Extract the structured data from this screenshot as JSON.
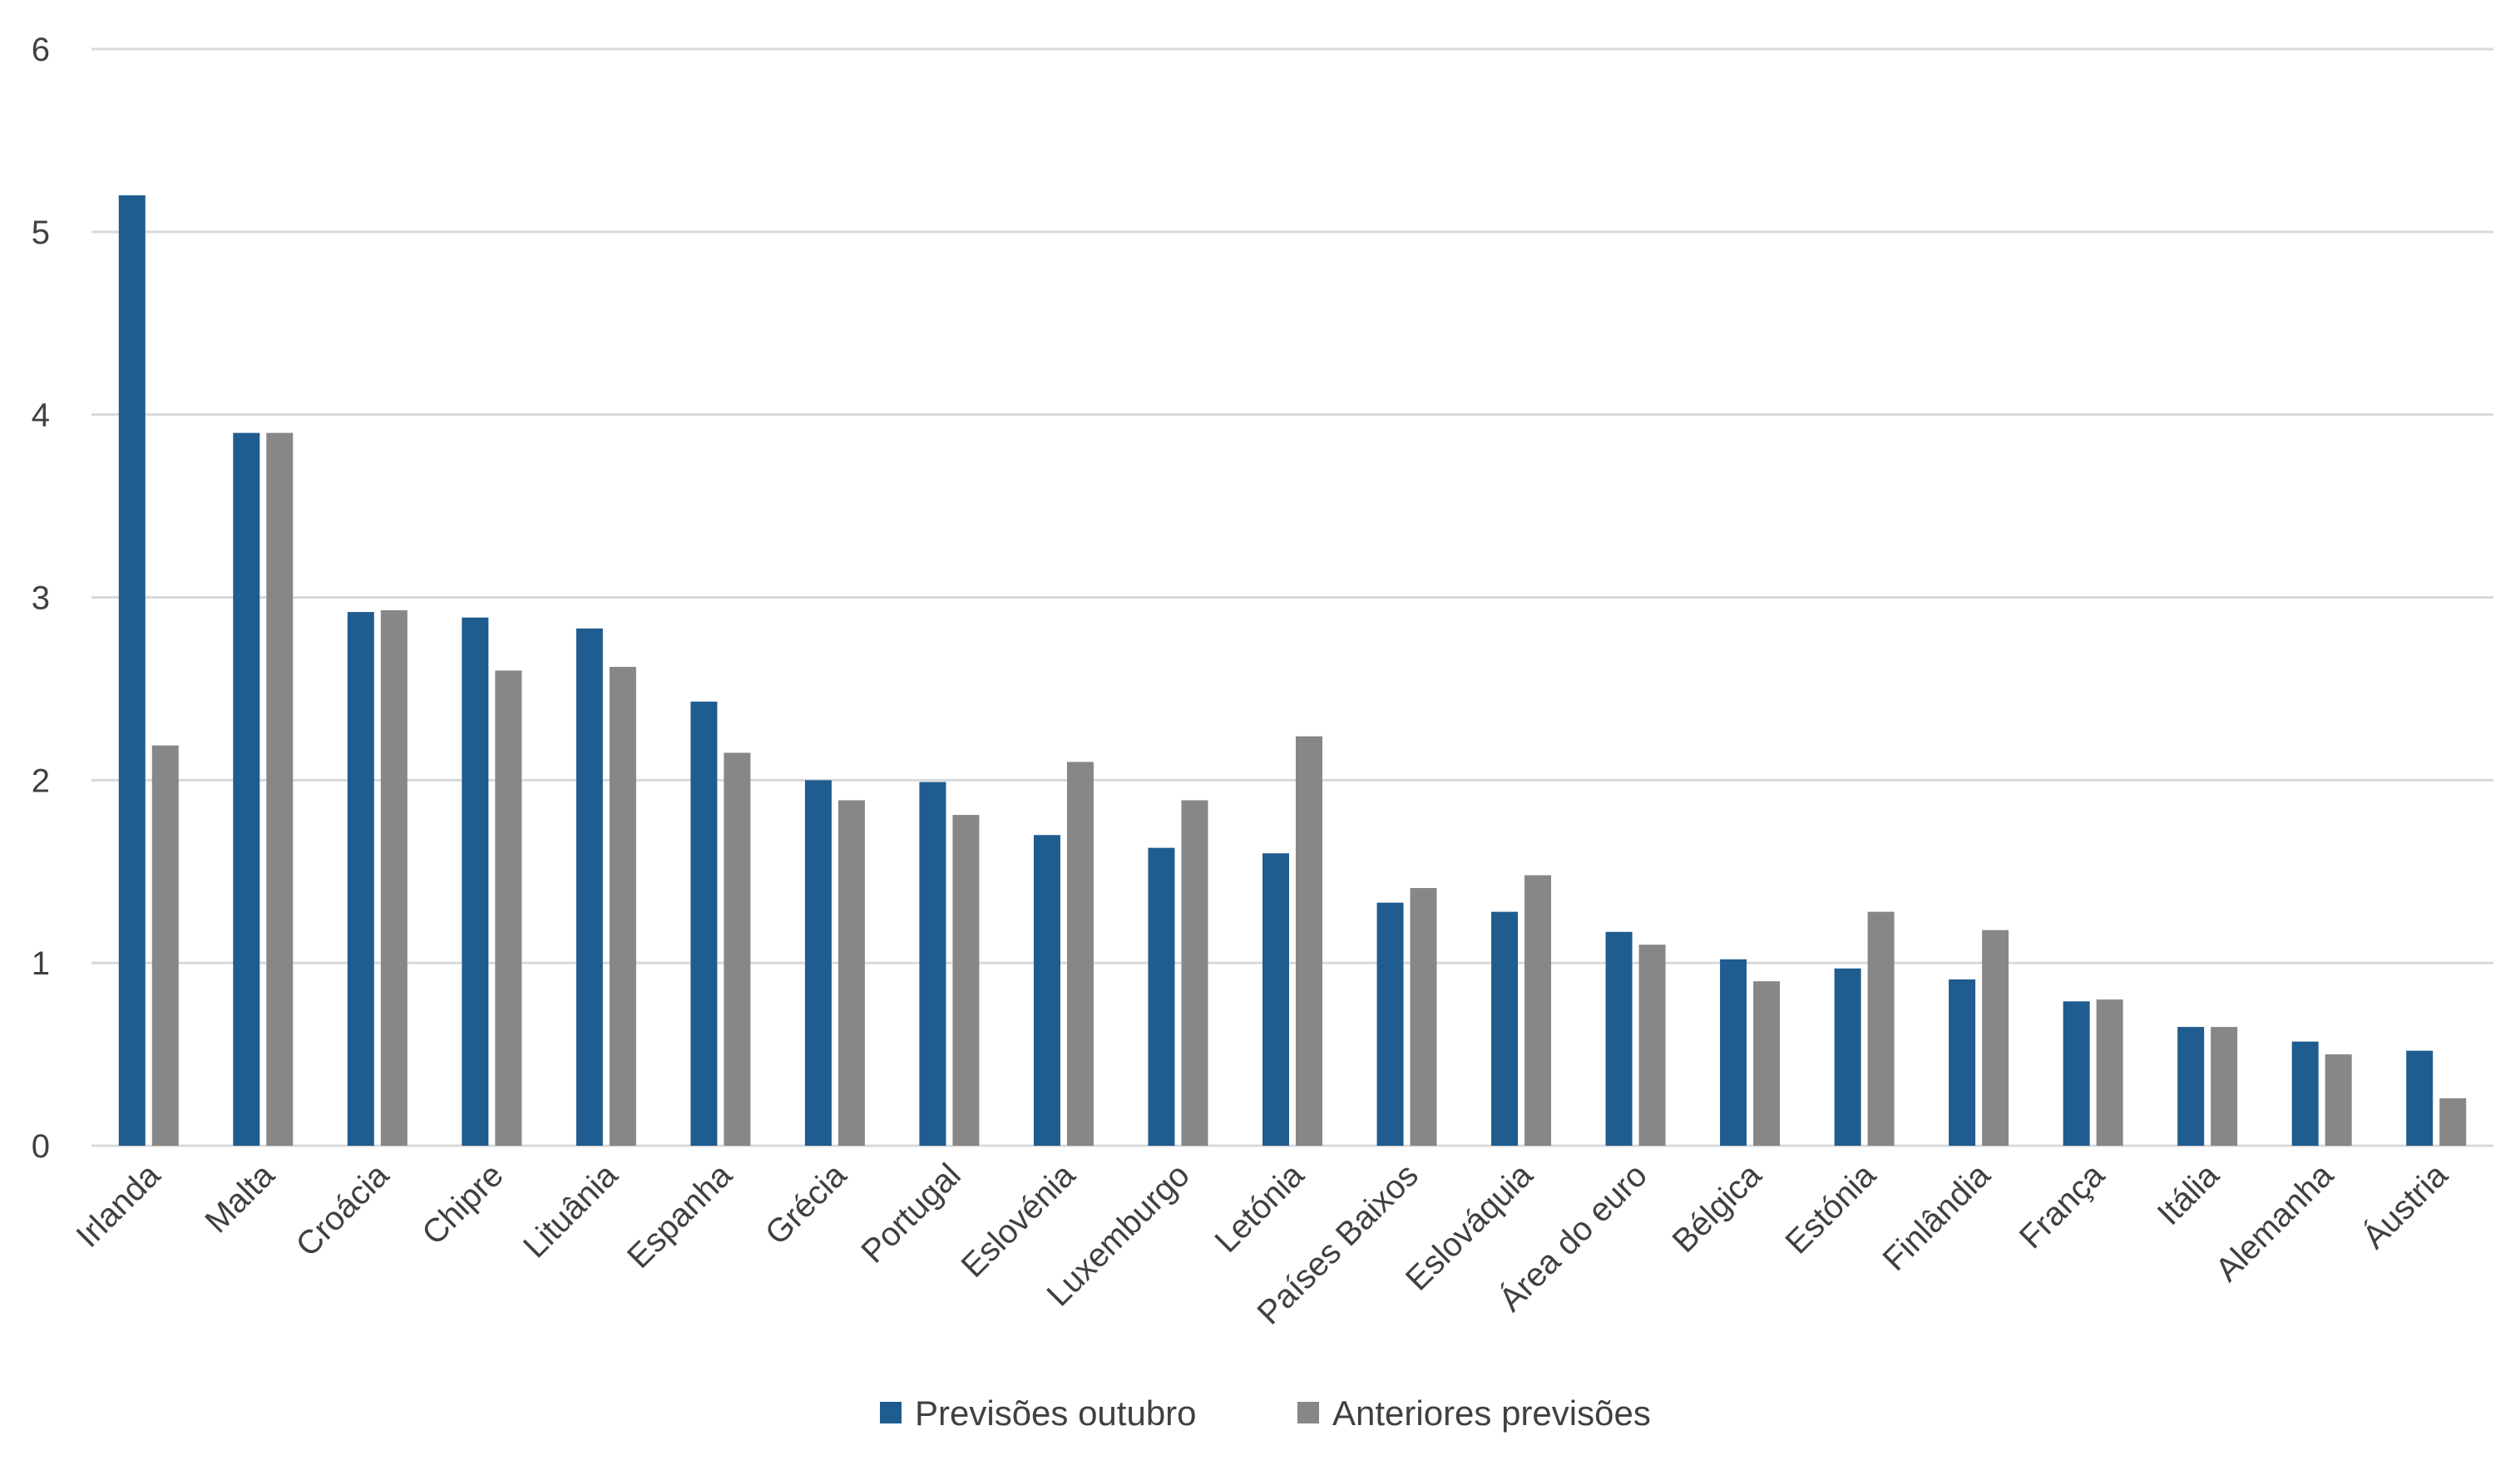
{
  "chart_data": {
    "type": "bar",
    "title": "",
    "xlabel": "",
    "ylabel": "",
    "ylim": [
      0,
      6
    ],
    "yticks": [
      0,
      1,
      2,
      3,
      4,
      5,
      6
    ],
    "grid": true,
    "legend_position": "bottom",
    "categories": [
      "Irlanda",
      "Malta",
      "Croácia",
      "Chipre",
      "Lituânia",
      "Espanha",
      "Grécia",
      "Portugal",
      "Eslovénia",
      "Luxemburgo",
      "Letónia",
      "Países Baixos",
      "Eslováquia",
      "Área do euro",
      "Bélgica",
      "Estónia",
      "Finlândia",
      "França",
      "Itália",
      "Alemanha",
      "Áustria"
    ],
    "series": [
      {
        "name": "Previsões outubro",
        "color": "#1F5C8F",
        "values": [
          5.2,
          3.9,
          2.92,
          2.89,
          2.83,
          2.43,
          2.0,
          1.99,
          1.7,
          1.63,
          1.6,
          1.33,
          1.28,
          1.17,
          1.02,
          0.97,
          0.91,
          0.79,
          0.65,
          0.57,
          0.52
        ]
      },
      {
        "name": "Anteriores previsões",
        "color": "#878787",
        "values": [
          2.19,
          3.9,
          2.93,
          2.6,
          2.62,
          2.15,
          1.89,
          1.81,
          2.1,
          1.89,
          2.24,
          1.41,
          1.48,
          1.1,
          0.9,
          1.28,
          1.18,
          0.8,
          0.65,
          0.5,
          0.26
        ]
      }
    ]
  }
}
